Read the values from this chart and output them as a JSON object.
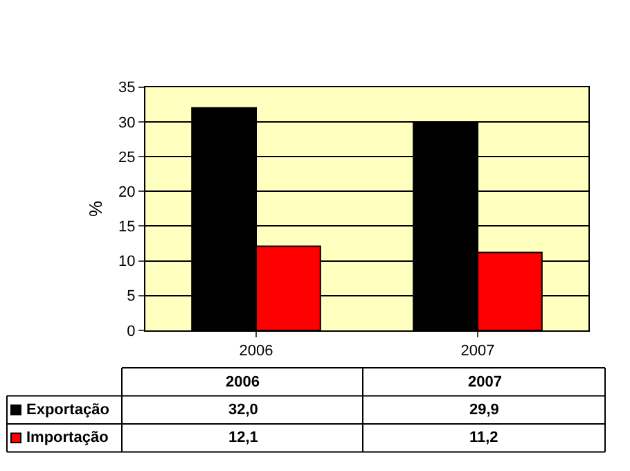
{
  "chart_data": {
    "type": "bar",
    "ylabel": "%",
    "categories": [
      "2006",
      "2007"
    ],
    "series": [
      {
        "name": "Exportação",
        "color": "#000000",
        "values": [
          32.0,
          29.9
        ],
        "value_labels": [
          "32,0",
          "29,9"
        ]
      },
      {
        "name": "Importação",
        "color": "#ff0000",
        "values": [
          12.1,
          11.2
        ],
        "value_labels": [
          "12,1",
          "11,2"
        ]
      }
    ],
    "ylim": [
      0,
      35
    ],
    "yticks": [
      0,
      5,
      10,
      15,
      20,
      25,
      30,
      35
    ],
    "grid": "y",
    "legend": "bottom"
  }
}
